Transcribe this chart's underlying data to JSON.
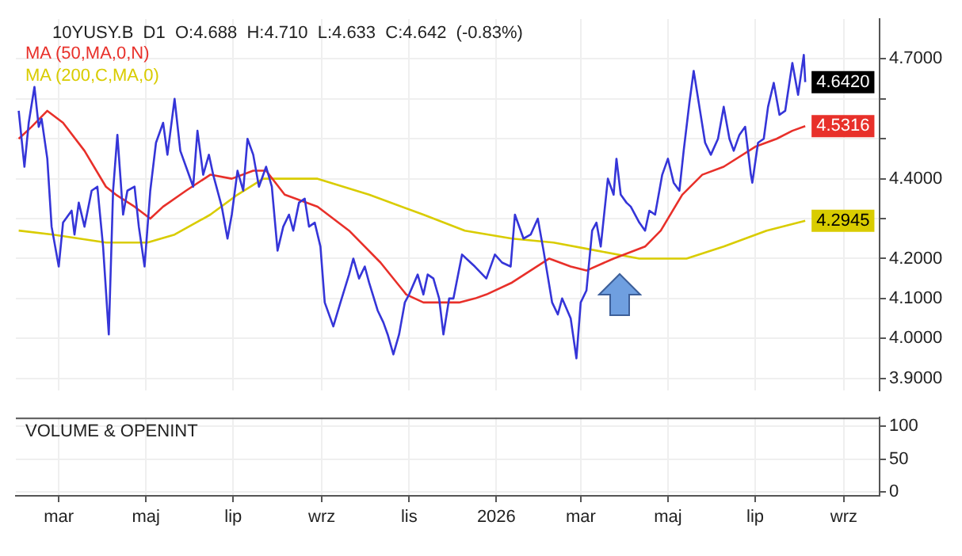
{
  "chart_data": [
    {
      "type": "line",
      "title": "10YUSY.B  D1  O:4.688  H:4.710  L:4.633  C:4.642  (-0.83%)",
      "legend": "top left",
      "grid": true,
      "tick_labels": "y",
      "xlim": [
        "2025-01-30",
        "2026-09-26"
      ],
      "xticks": [
        {
          "value": "2025-03-01",
          "label": null
        },
        {
          "value": "2025-05-01",
          "label": null
        },
        {
          "value": "2025-07-01",
          "label": null
        },
        {
          "value": "2025-09-01",
          "label": null
        },
        {
          "value": "2025-11-01",
          "label": null
        },
        {
          "value": "2026-01-01",
          "label": null
        },
        {
          "value": "2026-03-01",
          "label": null
        },
        {
          "value": "2026-05-01",
          "label": null
        },
        {
          "value": "2026-07-01",
          "label": null
        },
        {
          "value": "2026-09-01",
          "label": null
        }
      ],
      "ylim": [
        3.87,
        4.8
      ],
      "yticks": [
        {
          "value": 3.9,
          "label": "3.9000"
        },
        {
          "value": 4.0,
          "label": "4.0000"
        },
        {
          "value": 4.1,
          "label": "4.1000"
        },
        {
          "value": 4.2,
          "label": "4.2000"
        },
        {
          "value": 4.3,
          "label": null
        },
        {
          "value": 4.4,
          "label": "4.4000"
        },
        {
          "value": 4.5,
          "label": null
        },
        {
          "value": 4.6,
          "label": null
        },
        {
          "value": 4.7,
          "label": "4.7000"
        }
      ],
      "series": [
        {
          "color": "#3535d8",
          "x": [
            "2025-02-01",
            "2025-02-05",
            "2025-02-08",
            "2025-02-12",
            "2025-02-15",
            "2025-02-17",
            "2025-02-21",
            "2025-02-24",
            "2025-03-01",
            "2025-03-04",
            "2025-03-10",
            "2025-03-12",
            "2025-03-15",
            "2025-03-19",
            "2025-03-24",
            "2025-03-28",
            "2025-04-01",
            "2025-04-05",
            "2025-04-08",
            "2025-04-11",
            "2025-04-15",
            "2025-04-18",
            "2025-04-23",
            "2025-04-26",
            "2025-04-30",
            "2025-05-04",
            "2025-05-08",
            "2025-05-13",
            "2025-05-16",
            "2025-05-21",
            "2025-05-25",
            "2025-05-30",
            "2025-06-03",
            "2025-06-06",
            "2025-06-10",
            "2025-06-14",
            "2025-06-17",
            "2025-06-23",
            "2025-06-27",
            "2025-06-30",
            "2025-07-04",
            "2025-07-08",
            "2025-07-11",
            "2025-07-15",
            "2025-07-19",
            "2025-07-24",
            "2025-07-28",
            "2025-08-01",
            "2025-08-05",
            "2025-08-09",
            "2025-08-12",
            "2025-08-16",
            "2025-08-20",
            "2025-08-23",
            "2025-08-27",
            "2025-08-31",
            "2025-09-03",
            "2025-09-09",
            "2025-09-14",
            "2025-09-20",
            "2025-09-23",
            "2025-09-27",
            "2025-10-01",
            "2025-10-04",
            "2025-10-10",
            "2025-10-14",
            "2025-10-17",
            "2025-10-21",
            "2025-10-25",
            "2025-10-29",
            "2025-11-01",
            "2025-11-07",
            "2025-11-11",
            "2025-11-14",
            "2025-11-18",
            "2025-11-22",
            "2025-11-25",
            "2025-11-29",
            "2025-12-02",
            "2025-12-08",
            "2025-12-14",
            "2025-12-17",
            "2025-12-25",
            "2025-12-31",
            "2026-01-05",
            "2026-01-11",
            "2026-01-14",
            "2026-01-20",
            "2026-01-25",
            "2026-01-30",
            "2026-02-03",
            "2026-02-09",
            "2026-02-13",
            "2026-02-16",
            "2026-02-22",
            "2026-02-26",
            "2026-03-01",
            "2026-03-05",
            "2026-03-09",
            "2026-03-12",
            "2026-03-15",
            "2026-03-20",
            "2026-03-24",
            "2026-03-26",
            "2026-03-29",
            "2026-04-02",
            "2026-04-05",
            "2026-04-11",
            "2026-04-15",
            "2026-04-18",
            "2026-04-22",
            "2026-04-27",
            "2026-05-01",
            "2026-05-05",
            "2026-05-09",
            "2026-05-12",
            "2026-05-16",
            "2026-05-19",
            "2026-05-23",
            "2026-05-27",
            "2026-05-31",
            "2026-06-05",
            "2026-06-09",
            "2026-06-13",
            "2026-06-16",
            "2026-06-20",
            "2026-06-24",
            "2026-06-28",
            "2026-06-29",
            "2026-07-03",
            "2026-07-07",
            "2026-07-10",
            "2026-07-14",
            "2026-07-18",
            "2026-07-22",
            "2026-07-27",
            "2026-07-31",
            "2026-08-04",
            "2026-08-05"
          ],
          "values": [
            4.57,
            4.43,
            4.54,
            4.63,
            4.53,
            4.55,
            4.45,
            4.28,
            4.18,
            4.29,
            4.32,
            4.26,
            4.34,
            4.28,
            4.37,
            4.38,
            4.23,
            4.01,
            4.37,
            4.51,
            4.31,
            4.37,
            4.38,
            4.28,
            4.18,
            4.37,
            4.49,
            4.54,
            4.46,
            4.6,
            4.47,
            4.42,
            4.38,
            4.52,
            4.41,
            4.46,
            4.41,
            4.33,
            4.25,
            4.31,
            4.42,
            4.37,
            4.5,
            4.46,
            4.38,
            4.43,
            4.38,
            4.22,
            4.28,
            4.31,
            4.27,
            4.34,
            4.35,
            4.28,
            4.29,
            4.23,
            4.09,
            4.03,
            4.09,
            4.16,
            4.2,
            4.15,
            4.18,
            4.14,
            4.07,
            4.04,
            4.01,
            3.96,
            4.01,
            4.09,
            4.11,
            4.16,
            4.11,
            4.16,
            4.15,
            4.1,
            4.01,
            4.1,
            4.1,
            4.21,
            4.19,
            4.18,
            4.15,
            4.21,
            4.19,
            4.18,
            4.31,
            4.25,
            4.26,
            4.3,
            4.22,
            4.09,
            4.06,
            4.1,
            4.05,
            3.95,
            4.09,
            4.12,
            4.27,
            4.29,
            4.23,
            4.4,
            4.36,
            4.45,
            4.36,
            4.34,
            4.33,
            4.29,
            4.27,
            4.32,
            4.31,
            4.41,
            4.45,
            4.39,
            4.37,
            4.47,
            4.59,
            4.67,
            4.58,
            4.49,
            4.46,
            4.5,
            4.58,
            4.5,
            4.47,
            4.51,
            4.53,
            4.41,
            4.39,
            4.49,
            4.5,
            4.58,
            4.64,
            4.56,
            4.57,
            4.69,
            4.61,
            4.71,
            4.642
          ],
          "value_labels": [
            null,
            null,
            null,
            null,
            null,
            null,
            null,
            null,
            null,
            null,
            null,
            null,
            null,
            null,
            null,
            null,
            null,
            null,
            null,
            null,
            null,
            null,
            null,
            null,
            null,
            null,
            null,
            null,
            null,
            null,
            null,
            null,
            null,
            null,
            null,
            null,
            null,
            null,
            null,
            null,
            null,
            null,
            null,
            null,
            null,
            null,
            null,
            null,
            null,
            null,
            null,
            null,
            null,
            null,
            null,
            null,
            null,
            null,
            null,
            null,
            null,
            null,
            null,
            null,
            null,
            null,
            null,
            null,
            null,
            null,
            null,
            null,
            null,
            null,
            null,
            null,
            null,
            null,
            null,
            null,
            null,
            null,
            null,
            null,
            null,
            null,
            null,
            null,
            null,
            null,
            null,
            null,
            null,
            null,
            null,
            null,
            null,
            null,
            null,
            null,
            null,
            null,
            null,
            null,
            null,
            null,
            null,
            null,
            null,
            null,
            null,
            null,
            null,
            null,
            null,
            null,
            null,
            null,
            null,
            null,
            null,
            null,
            null,
            null,
            null,
            null,
            null,
            null,
            null,
            null,
            null,
            null,
            null,
            null,
            null,
            null,
            null,
            null,
            "4.6420"
          ]
        },
        {
          "name": "MA (50,MA,0,N)",
          "color": "#e8302a",
          "x": [
            "2025-02-01",
            "2025-02-10",
            "2025-02-21",
            "2025-03-04",
            "2025-03-19",
            "2025-04-03",
            "2025-04-10",
            "2025-04-23",
            "2025-05-04",
            "2025-05-13",
            "2025-05-29",
            "2025-06-15",
            "2025-06-30",
            "2025-07-15",
            "2025-07-24",
            "2025-08-06",
            "2025-08-29",
            "2025-09-20",
            "2025-10-12",
            "2025-10-30",
            "2025-11-11",
            "2025-11-29",
            "2025-12-06",
            "2025-12-17",
            "2025-12-25",
            "2026-01-12",
            "2026-02-07",
            "2026-02-22",
            "2026-03-05",
            "2026-03-24",
            "2026-04-15",
            "2026-04-26",
            "2026-05-11",
            "2026-05-25",
            "2026-06-09",
            "2026-07-01",
            "2026-07-16",
            "2026-07-27",
            "2026-08-05"
          ],
          "values": [
            4.5,
            4.53,
            4.57,
            4.54,
            4.47,
            4.38,
            4.36,
            4.33,
            4.3,
            4.33,
            4.37,
            4.41,
            4.4,
            4.42,
            4.42,
            4.36,
            4.33,
            4.27,
            4.19,
            4.11,
            4.09,
            4.09,
            4.09,
            4.1,
            4.11,
            4.14,
            4.2,
            4.18,
            4.17,
            4.2,
            4.23,
            4.27,
            4.36,
            4.41,
            4.43,
            4.48,
            4.5,
            4.52,
            4.5316
          ],
          "value_labels": [
            null,
            null,
            null,
            null,
            null,
            null,
            null,
            null,
            null,
            null,
            null,
            null,
            null,
            null,
            null,
            null,
            null,
            null,
            null,
            null,
            null,
            null,
            null,
            null,
            null,
            null,
            null,
            null,
            null,
            null,
            null,
            null,
            null,
            null,
            null,
            null,
            null,
            null,
            "4.5316"
          ]
        },
        {
          "name": "MA (200,C,MA,0)",
          "color": "#d9cc00",
          "x": [
            "2025-02-01",
            "2025-02-25",
            "2025-04-03",
            "2025-05-02",
            "2025-05-21",
            "2025-06-15",
            "2025-07-04",
            "2025-07-22",
            "2025-08-03",
            "2025-08-29",
            "2025-10-04",
            "2025-11-11",
            "2025-12-10",
            "2026-01-12",
            "2026-02-10",
            "2026-03-12",
            "2026-04-11",
            "2026-05-14",
            "2026-06-09",
            "2026-07-09",
            "2026-08-05"
          ],
          "values": [
            4.27,
            4.26,
            4.24,
            4.24,
            4.26,
            4.31,
            4.36,
            4.4,
            4.4,
            4.4,
            4.36,
            4.31,
            4.27,
            4.25,
            4.24,
            4.22,
            4.2,
            4.2,
            4.23,
            4.27,
            4.2945
          ],
          "value_labels": [
            null,
            null,
            null,
            null,
            null,
            null,
            null,
            null,
            null,
            null,
            null,
            null,
            null,
            null,
            null,
            null,
            null,
            null,
            null,
            null,
            "4.2945"
          ]
        }
      ]
    },
    {
      "type": "line",
      "title": "VOLUME & OPENINT",
      "grid": true,
      "xlim": [
        "2025-01-30",
        "2026-09-26"
      ],
      "xticks": [
        {
          "value": "2025-03-01",
          "label": "mar"
        },
        {
          "value": "2025-05-01",
          "label": "maj"
        },
        {
          "value": "2025-07-01",
          "label": "lip"
        },
        {
          "value": "2025-09-01",
          "label": "wrz"
        },
        {
          "value": "2025-11-01",
          "label": "lis"
        },
        {
          "value": "2026-01-01",
          "label": "2026"
        },
        {
          "value": "2026-03-01",
          "label": "mar"
        },
        {
          "value": "2026-05-01",
          "label": "maj"
        },
        {
          "value": "2026-07-01",
          "label": "lip"
        },
        {
          "value": "2026-09-01",
          "label": "wrz"
        }
      ],
      "ylim": [
        -6,
        113
      ],
      "yticks": [
        0,
        50,
        100
      ]
    }
  ]
}
